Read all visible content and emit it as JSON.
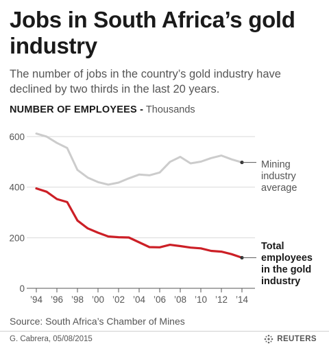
{
  "header": {
    "title": "Jobs in South Africa’s gold industry",
    "subtitle": "The number of jobs in the country’s gold industry have declined by two thirds in the last 20 years.",
    "measure_label": "NUMBER OF EMPLOYEES -",
    "unit_label": "Thousands"
  },
  "chart_data": {
    "type": "line",
    "title": "",
    "xlabel": "",
    "ylabel": "NUMBER OF EMPLOYEES - Thousands",
    "xlim": [
      1994,
      2014
    ],
    "ylim": [
      0,
      600
    ],
    "y_ticks": [
      0,
      200,
      400,
      600
    ],
    "x_ticks": [
      1994,
      1996,
      1998,
      2000,
      2002,
      2004,
      2006,
      2008,
      2010,
      2012,
      2014
    ],
    "x_tick_labels": [
      "’94",
      "’96",
      "’98",
      "’00",
      "’02",
      "’04",
      "’06",
      "’08",
      "’10",
      "’12",
      "’14"
    ],
    "grid": true,
    "series": [
      {
        "name": "Mining industry average",
        "label_lines": [
          "Mining",
          "industry",
          "average"
        ],
        "color": "#cccccc",
        "x": [
          1994,
          1995,
          1996,
          1997,
          1998,
          1999,
          2000,
          2001,
          2002,
          2003,
          2004,
          2005,
          2006,
          2007,
          2008,
          2009,
          2010,
          2011,
          2012,
          2013,
          2014
        ],
        "values": [
          612,
          600,
          575,
          555,
          468,
          438,
          420,
          410,
          418,
          435,
          450,
          447,
          458,
          500,
          520,
          494,
          501,
          515,
          525,
          510,
          498
        ]
      },
      {
        "name": "Total employees in the gold industry",
        "label_lines": [
          "Total",
          "employees",
          "in the gold",
          "industry"
        ],
        "color": "#cc1f26",
        "x": [
          1994,
          1995,
          1996,
          1997,
          1998,
          1999,
          2000,
          2001,
          2002,
          2003,
          2004,
          2005,
          2006,
          2007,
          2008,
          2009,
          2010,
          2011,
          2012,
          2013,
          2014
        ],
        "values": [
          395,
          382,
          353,
          341,
          268,
          237,
          220,
          205,
          202,
          201,
          182,
          163,
          162,
          172,
          167,
          161,
          158,
          148,
          145,
          135,
          121
        ]
      }
    ]
  },
  "footer": {
    "source": "Source: South Africa’s Chamber of Mines",
    "credit": "G. Cabrera, 05/08/2015",
    "brand": "REUTERS"
  }
}
